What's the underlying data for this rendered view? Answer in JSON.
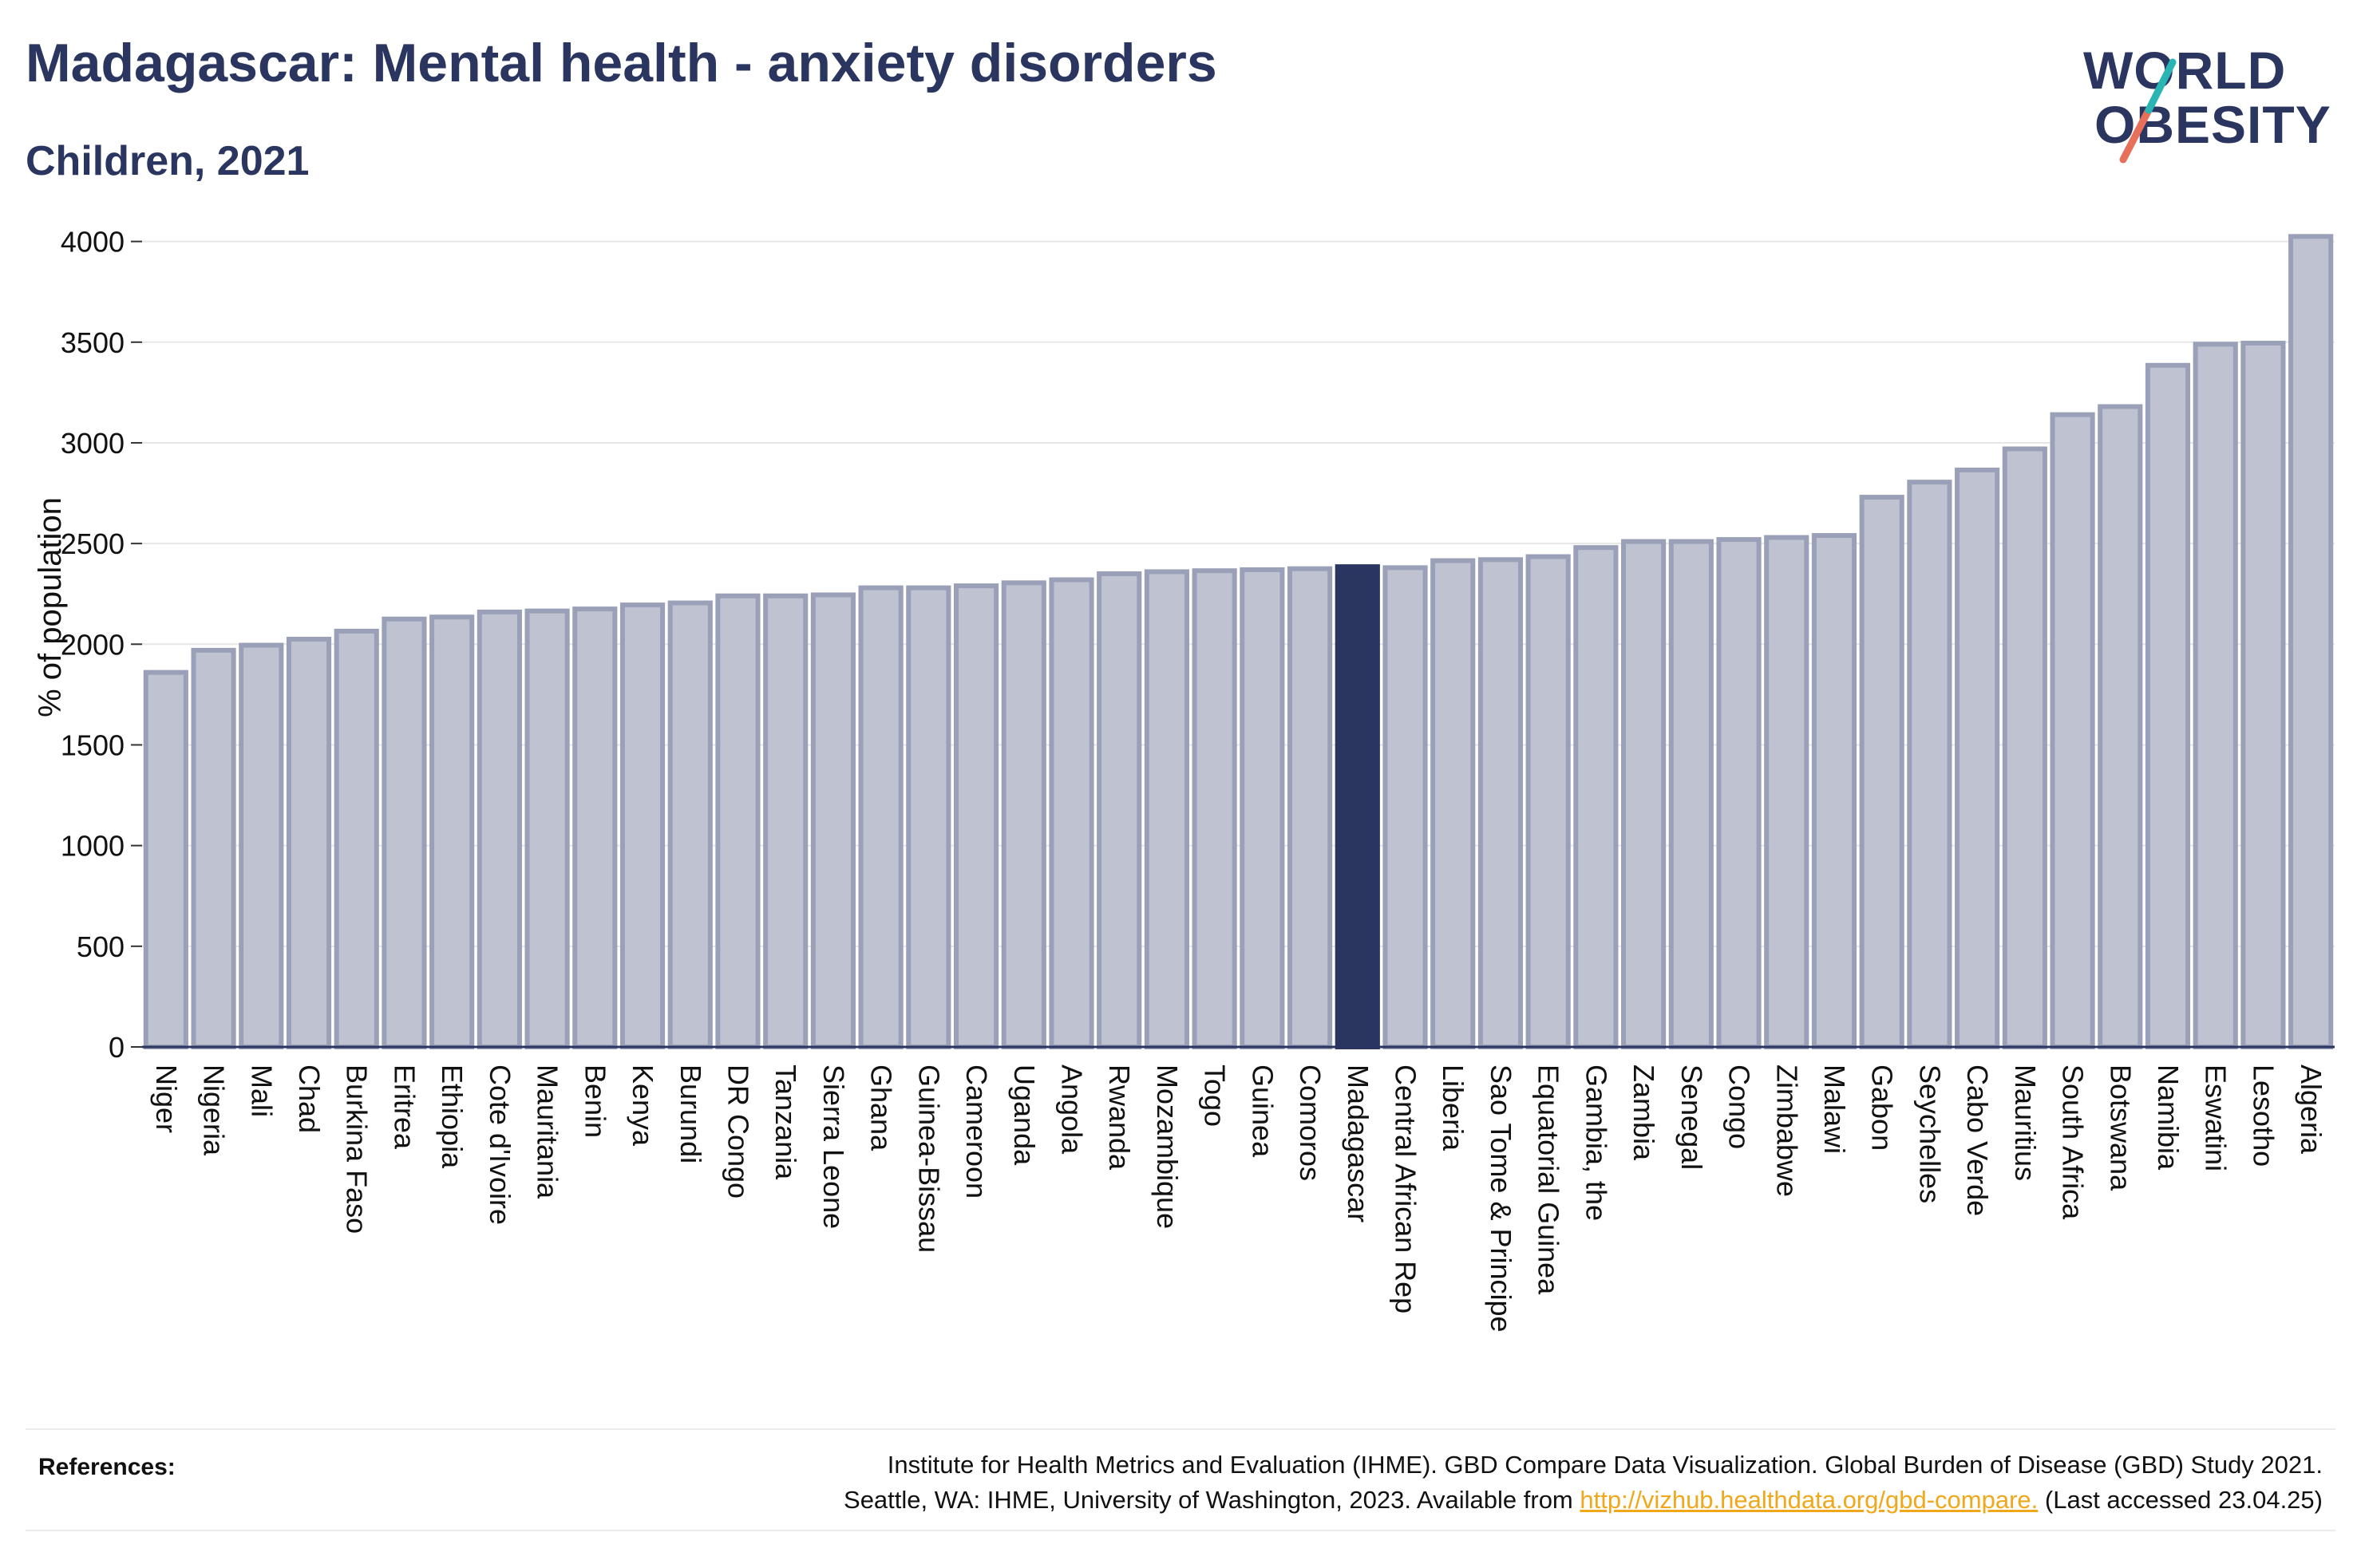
{
  "header": {
    "title": "Madagascar: Mental health - anxiety disorders",
    "subtitle": "Children, 2021"
  },
  "logo": {
    "line1": "WORLD",
    "line2": "OBESITY",
    "accent_colors": [
      "#2ab5b5",
      "#e8705a"
    ]
  },
  "colors": {
    "highlight": "#2a3560",
    "bar": "#bfc3d1",
    "bar_stroke": "#9aa0b8",
    "text": "#2a3560"
  },
  "chart_data": {
    "type": "bar",
    "ylabel": "% of population",
    "ylim": [
      0,
      4050
    ],
    "yticks": [
      0,
      500,
      1000,
      1500,
      2000,
      2500,
      3000,
      3500,
      4000
    ],
    "grid": true,
    "highlight_category": "Madagascar",
    "categories": [
      "Niger",
      "Nigeria",
      "Mali",
      "Chad",
      "Burkina Faso",
      "Eritrea",
      "Ethiopia",
      "Cote d'Ivoire",
      "Mauritania",
      "Benin",
      "Kenya",
      "Burundi",
      "DR Congo",
      "Tanzania",
      "Sierra Leone",
      "Ghana",
      "Guinea-Bissau",
      "Cameroon",
      "Uganda",
      "Angola",
      "Rwanda",
      "Mozambique",
      "Togo",
      "Guinea",
      "Comoros",
      "Madagascar",
      "Central African Rep",
      "Liberia",
      "Sao Tome & Principe",
      "Equatorial Guinea",
      "Gambia, the",
      "Zambia",
      "Senegal",
      "Congo",
      "Zimbabwe",
      "Malawi",
      "Gabon",
      "Seychelles",
      "Cabo Verde",
      "Mauritius",
      "South Africa",
      "Botswana",
      "Namibia",
      "Eswatini",
      "Lesotho",
      "Algeria"
    ],
    "values": [
      1860,
      1970,
      1995,
      2025,
      2065,
      2125,
      2135,
      2160,
      2165,
      2175,
      2195,
      2205,
      2240,
      2240,
      2245,
      2280,
      2280,
      2290,
      2305,
      2320,
      2350,
      2360,
      2365,
      2370,
      2375,
      2385,
      2380,
      2415,
      2420,
      2435,
      2480,
      2510,
      2510,
      2520,
      2530,
      2540,
      2730,
      2805,
      2865,
      2970,
      3140,
      3180,
      3385,
      3490,
      3495,
      4025
    ]
  },
  "references": {
    "label": "References:",
    "line1": "Institute for Health Metrics and Evaluation (IHME). GBD Compare Data Visualization. Global Burden of Disease (GBD) Study 2021.",
    "line2_pre": "Seattle, WA: IHME, University of Washington, 2023. Available from",
    "link": "http://vizhub.healthdata.org/gbd-compare.",
    "line2_post": "(Last accessed 23.04.25)"
  }
}
